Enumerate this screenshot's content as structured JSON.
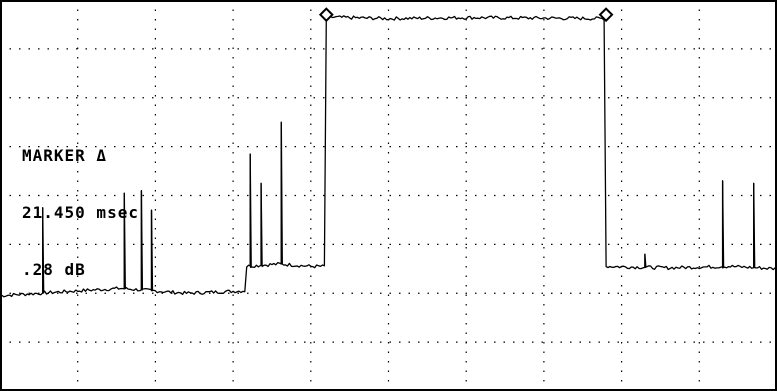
{
  "readout": {
    "line1": "MARKER Δ",
    "line2": "21.450 msec",
    "line3": ".28 dB"
  },
  "chart_data": {
    "type": "line",
    "title": "",
    "xlabel": "",
    "ylabel": "",
    "xlim": [
      0,
      10
    ],
    "ylim": [
      0,
      8
    ],
    "grid": true,
    "grid_divisions": {
      "x": 10,
      "y": 8
    },
    "markers": [
      {
        "x": 4.2,
        "y": 7.7
      },
      {
        "x": 7.8,
        "y": 7.7
      }
    ],
    "series": [
      {
        "baseline": [
          [
            0.0,
            1.95
          ],
          [
            1.0,
            2.05
          ],
          [
            1.55,
            2.1
          ],
          [
            2.4,
            2.0
          ],
          [
            3.15,
            2.05
          ],
          [
            3.16,
            2.55
          ],
          [
            3.6,
            2.6
          ],
          [
            4.0,
            2.55
          ],
          [
            4.18,
            2.55
          ],
          [
            4.2,
            7.65
          ],
          [
            5.0,
            7.62
          ],
          [
            6.0,
            7.64
          ],
          [
            7.0,
            7.63
          ],
          [
            7.78,
            7.62
          ],
          [
            7.8,
            2.55
          ],
          [
            8.6,
            2.52
          ],
          [
            9.4,
            2.55
          ],
          [
            10.0,
            2.5
          ]
        ],
        "spikes": [
          {
            "x": 0.55,
            "y": 3.75
          },
          {
            "x": 1.6,
            "y": 4.05
          },
          {
            "x": 1.82,
            "y": 4.1
          },
          {
            "x": 1.95,
            "y": 3.7
          },
          {
            "x": 3.22,
            "y": 4.85
          },
          {
            "x": 3.36,
            "y": 4.25
          },
          {
            "x": 3.62,
            "y": 5.5
          },
          {
            "x": 8.3,
            "y": 2.8
          },
          {
            "x": 9.3,
            "y": 4.3
          },
          {
            "x": 9.7,
            "y": 4.25
          }
        ]
      }
    ]
  }
}
